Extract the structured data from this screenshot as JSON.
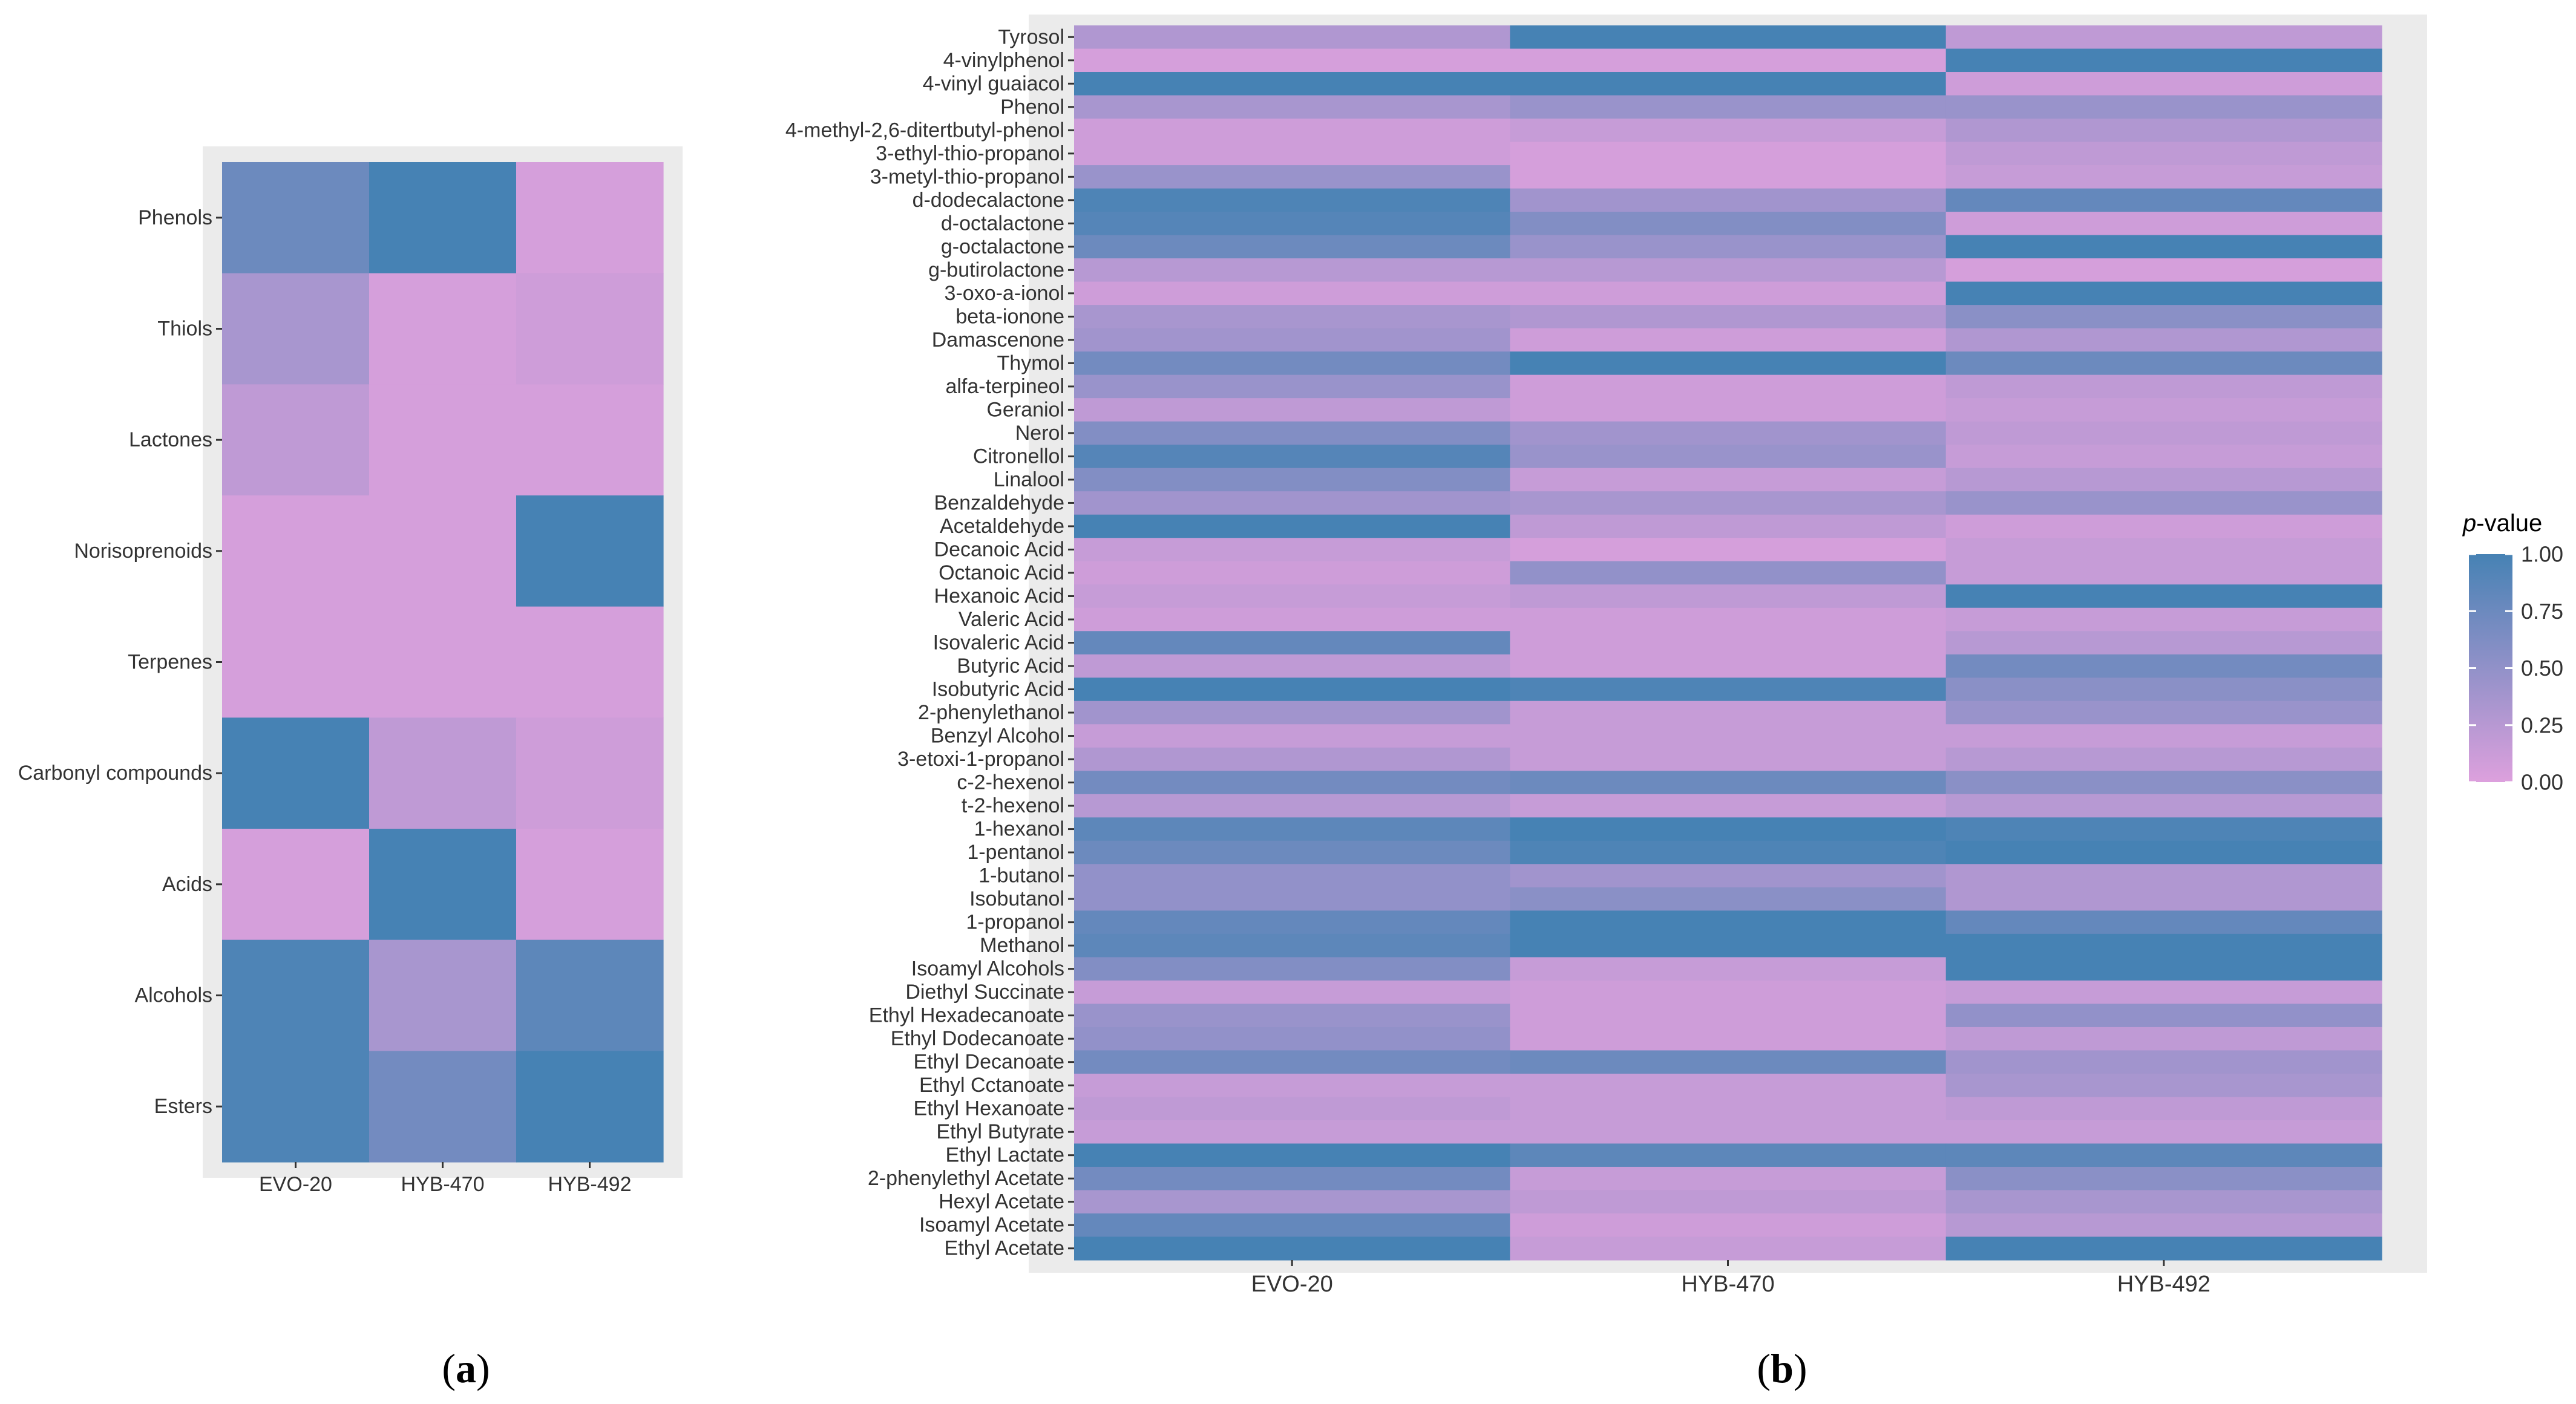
{
  "chart_data": [
    {
      "type": "heatmap",
      "panel_label": "(a)",
      "panel_letter": "a",
      "title": "",
      "xlabel": "",
      "ylabel": "",
      "x": [
        "EVO-20",
        "HYB-470",
        "HYB-492"
      ],
      "y": [
        "Phenols",
        "Thiols",
        "Lactones",
        "Norisoprenoids",
        "Terpenes",
        "Carbonyl compounds",
        "Acids",
        "Alcohols",
        "Esters"
      ],
      "values": [
        [
          0.75,
          1.0,
          0.05
        ],
        [
          0.35,
          0.05,
          0.1
        ],
        [
          0.2,
          0.05,
          0.05
        ],
        [
          0.05,
          0.05,
          1.0
        ],
        [
          0.05,
          0.05,
          0.05
        ],
        [
          1.0,
          0.2,
          0.1
        ],
        [
          0.05,
          1.0,
          0.05
        ],
        [
          0.95,
          0.35,
          0.85
        ],
        [
          0.95,
          0.7,
          1.0
        ]
      ]
    },
    {
      "type": "heatmap",
      "panel_label": "(b)",
      "panel_letter": "b",
      "title": "",
      "xlabel": "",
      "ylabel": "",
      "x": [
        "EVO-20",
        "HYB-470",
        "HYB-492"
      ],
      "y": [
        "Tyrosol",
        "4-vinylphenol",
        "4-vinyl guaiacol",
        "Phenol",
        "4-methyl-2,6-ditertbutyl-phenol",
        "3-ethyl-thio-propanol",
        "3-metyl-thio-propanol",
        "d-dodecalactone",
        "d-octalactone",
        "g-octalactone",
        "g-butirolactone",
        "3-oxo-a-ionol",
        "beta-ionone",
        "Damascenone",
        "Thymol",
        "alfa-terpineol",
        "Geraniol",
        "Nerol",
        "Citronellol",
        "Linalool",
        "Benzaldehyde",
        "Acetaldehyde",
        "Decanoic Acid",
        "Octanoic Acid",
        "Hexanoic Acid",
        "Valeric Acid",
        "Isovaleric Acid",
        "Butyric Acid",
        "Isobutyric Acid",
        "2-phenylethanol",
        "Benzyl Alcohol",
        "3-etoxi-1-propanol",
        "c-2-hexenol",
        "t-2-hexenol",
        "1-hexanol",
        "1-pentanol",
        "1-butanol",
        "Isobutanol",
        "1-propanol",
        "Methanol",
        "Isoamyl Alcohols",
        "Diethyl Succinate",
        "Ethyl Hexadecanoate",
        "Ethyl Dodecanoate",
        "Ethyl Decanoate",
        "Ethyl Cctanoate",
        "Ethyl Hexanoate",
        "Ethyl Butyrate",
        "Ethyl Lactate",
        "2-phenylethyl Acetate",
        "Hexyl Acetate",
        "Isoamyl Acetate",
        "Ethyl Acetate"
      ],
      "values": [
        [
          0.3,
          1.0,
          0.2
        ],
        [
          0.05,
          0.05,
          1.0
        ],
        [
          1.0,
          1.0,
          0.1
        ],
        [
          0.35,
          0.45,
          0.45
        ],
        [
          0.1,
          0.15,
          0.3
        ],
        [
          0.1,
          0.05,
          0.2
        ],
        [
          0.45,
          0.05,
          0.15
        ],
        [
          0.95,
          0.4,
          0.8
        ],
        [
          0.9,
          0.6,
          0.1
        ],
        [
          0.75,
          0.45,
          1.0
        ],
        [
          0.25,
          0.25,
          0.05
        ],
        [
          0.1,
          0.1,
          1.0
        ],
        [
          0.35,
          0.3,
          0.55
        ],
        [
          0.4,
          0.1,
          0.3
        ],
        [
          0.7,
          1.0,
          0.75
        ],
        [
          0.45,
          0.1,
          0.2
        ],
        [
          0.2,
          0.1,
          0.15
        ],
        [
          0.6,
          0.4,
          0.2
        ],
        [
          0.9,
          0.45,
          0.15
        ],
        [
          0.6,
          0.15,
          0.25
        ],
        [
          0.4,
          0.35,
          0.45
        ],
        [
          1.0,
          0.2,
          0.1
        ],
        [
          0.15,
          0.05,
          0.15
        ],
        [
          0.1,
          0.5,
          0.15
        ],
        [
          0.15,
          0.2,
          1.0
        ],
        [
          0.1,
          0.1,
          0.15
        ],
        [
          0.8,
          0.1,
          0.25
        ],
        [
          0.2,
          0.1,
          0.7
        ],
        [
          1.0,
          0.95,
          0.55
        ],
        [
          0.4,
          0.15,
          0.45
        ],
        [
          0.15,
          0.15,
          0.15
        ],
        [
          0.3,
          0.15,
          0.25
        ],
        [
          0.7,
          0.75,
          0.55
        ],
        [
          0.25,
          0.15,
          0.25
        ],
        [
          0.85,
          1.0,
          0.95
        ],
        [
          0.75,
          0.95,
          1.0
        ],
        [
          0.5,
          0.4,
          0.3
        ],
        [
          0.5,
          0.55,
          0.3
        ],
        [
          0.8,
          1.0,
          0.8
        ],
        [
          0.85,
          1.0,
          1.0
        ],
        [
          0.6,
          0.15,
          1.0
        ],
        [
          0.15,
          0.1,
          0.15
        ],
        [
          0.45,
          0.1,
          0.5
        ],
        [
          0.5,
          0.1,
          0.2
        ],
        [
          0.7,
          0.75,
          0.4
        ],
        [
          0.15,
          0.15,
          0.35
        ],
        [
          0.2,
          0.15,
          0.2
        ],
        [
          0.15,
          0.15,
          0.15
        ],
        [
          1.0,
          0.85,
          0.85
        ],
        [
          0.7,
          0.15,
          0.55
        ],
        [
          0.35,
          0.2,
          0.35
        ],
        [
          0.8,
          0.1,
          0.25
        ],
        [
          1.0,
          0.15,
          1.0
        ]
      ],
      "legend": {
        "title_italic": "p",
        "title_rest": "-value",
        "ticks": [
          "1.00",
          "0.75",
          "0.50",
          "0.25",
          "0.00"
        ],
        "tick_values": [
          1.0,
          0.75,
          0.5,
          0.25,
          0.0
        ],
        "range": [
          0,
          1
        ],
        "placement": "right"
      }
    }
  ],
  "colors": {
    "low": "#dda0dd",
    "high": "#4682b4",
    "panel_background": "#ebebeb",
    "text": "#333333"
  }
}
